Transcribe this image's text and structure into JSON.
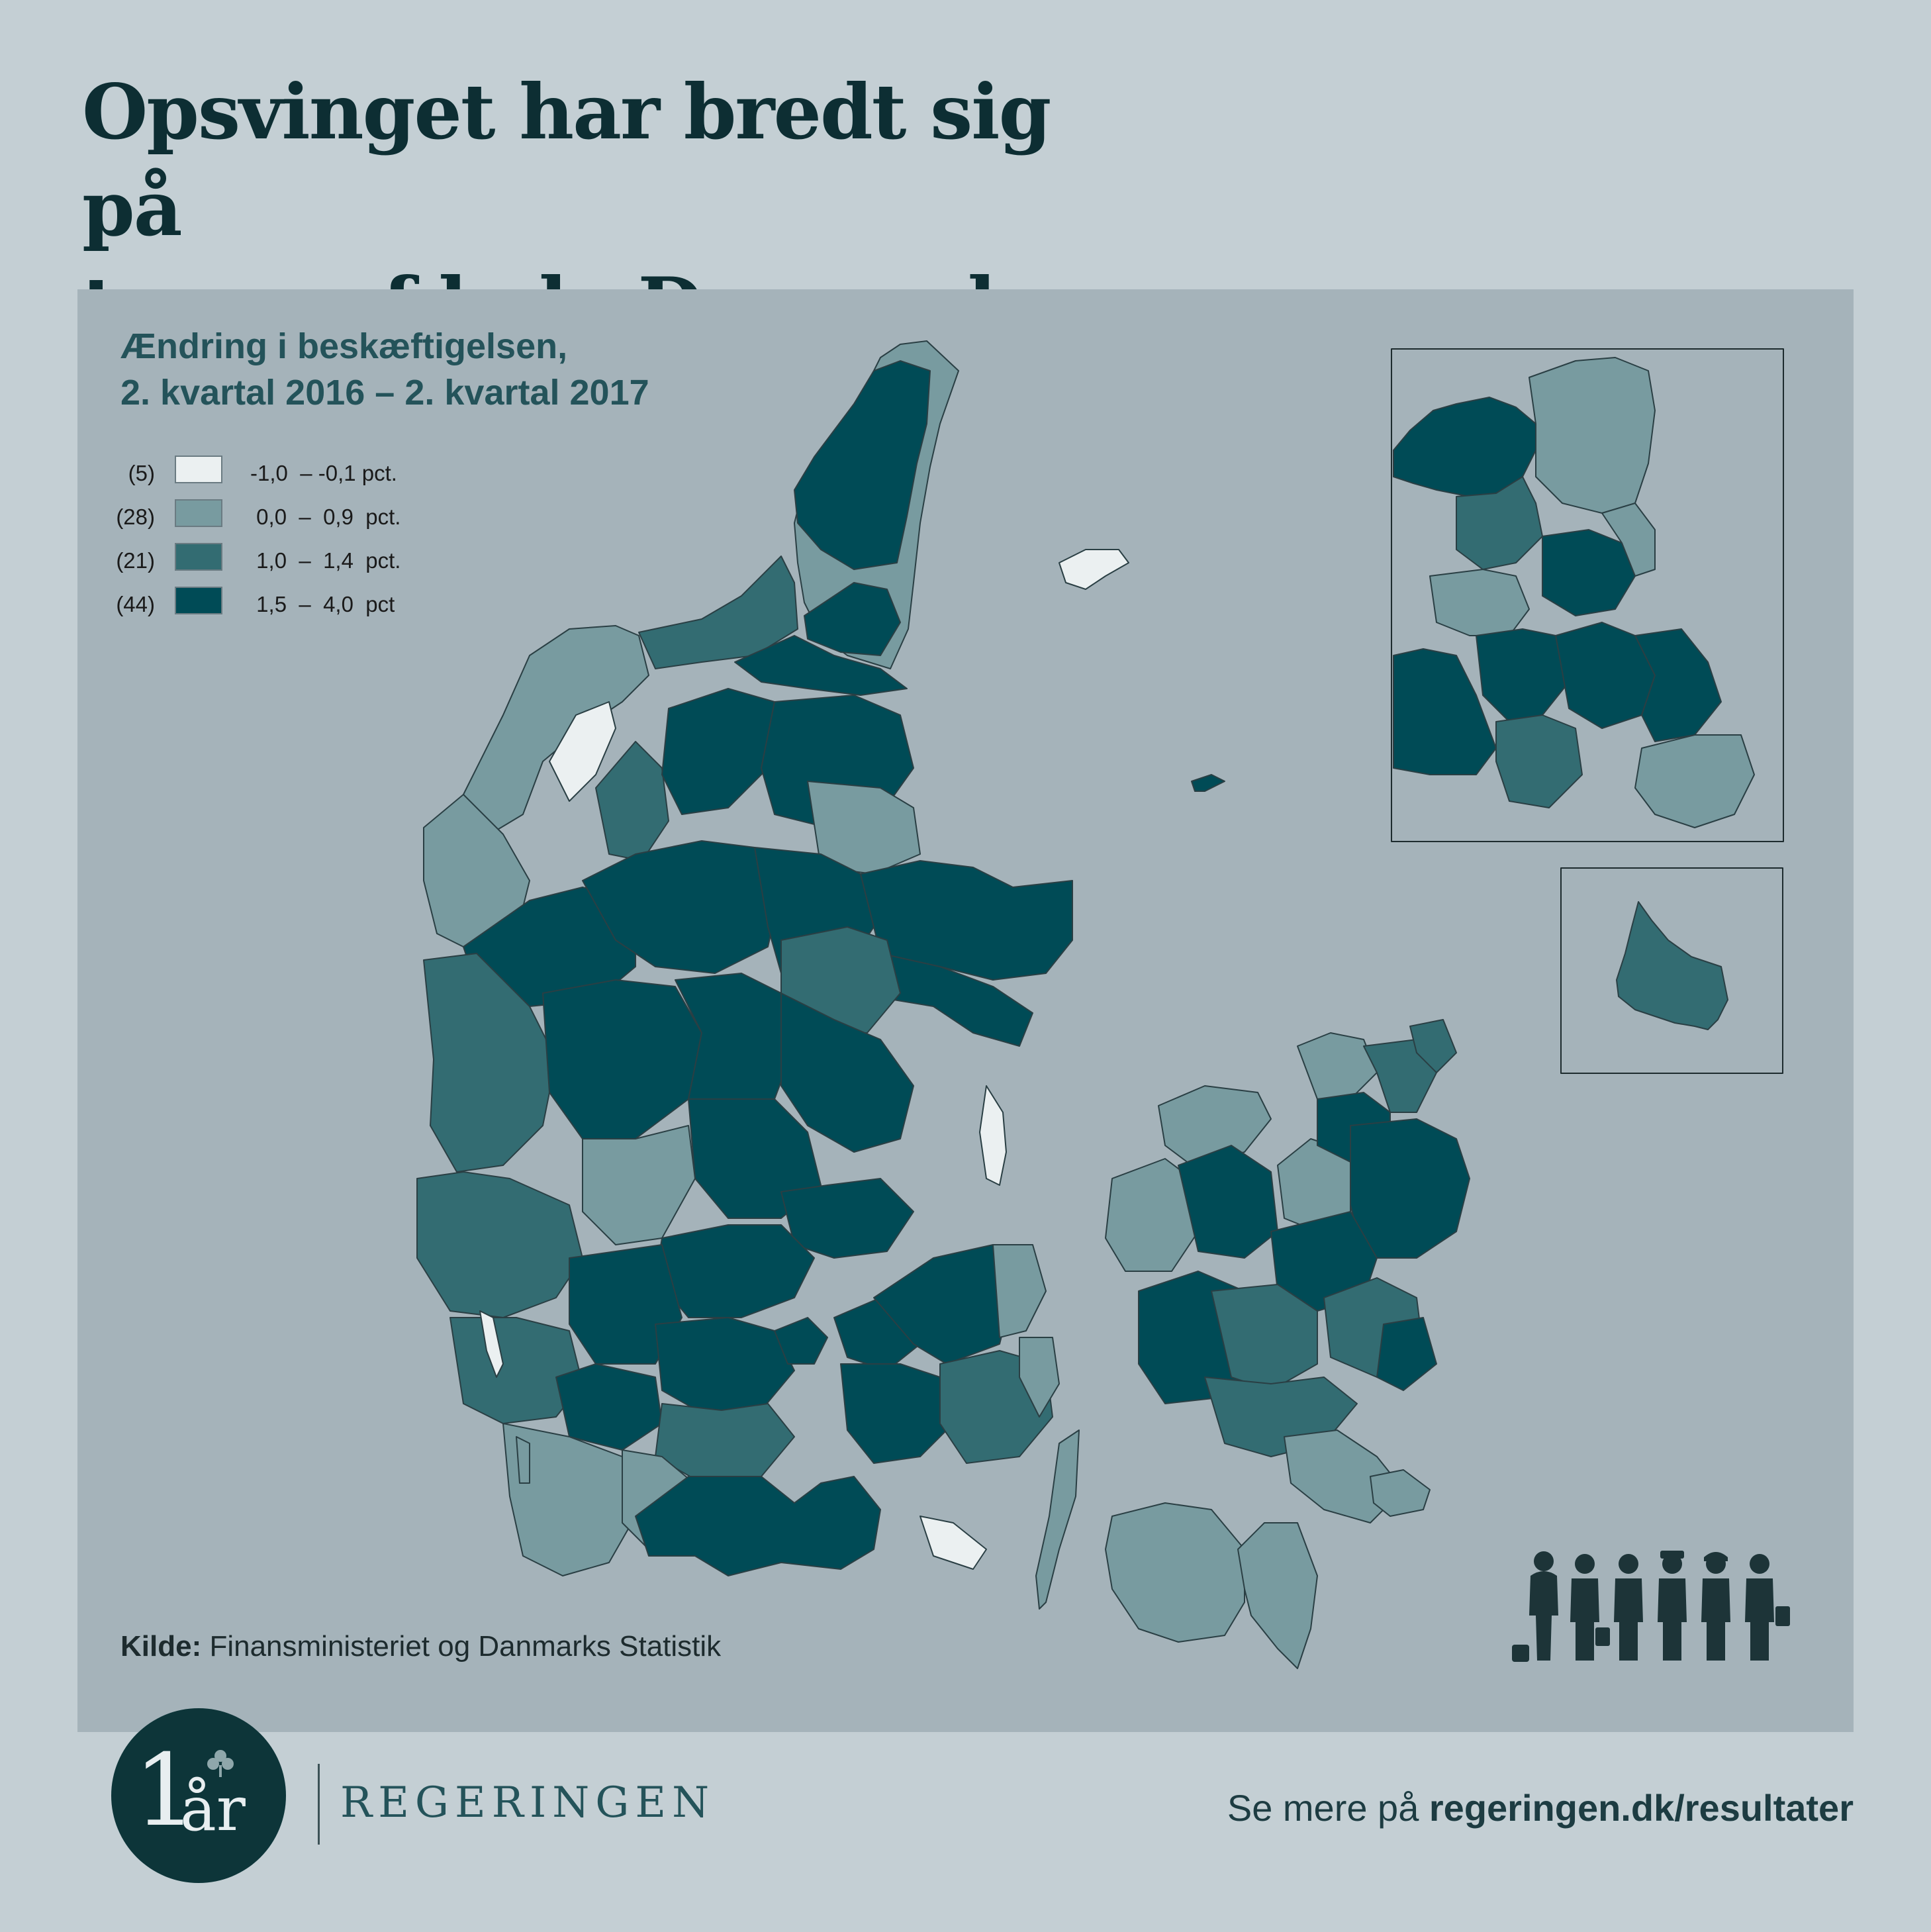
{
  "title": {
    "line1": "Opsvinget har bredt sig på",
    "line2": "tværs af hele Danmark"
  },
  "subtitle": {
    "line1": "Ændring i beskæftigelsen,",
    "line2": "2. kvartal 2016 – 2. kvartal 2017"
  },
  "legend": [
    {
      "count": "(5)",
      "range": "-1,0  – -0,1 pct.",
      "color": "#ebf0f1"
    },
    {
      "count": "(28)",
      "range": " 0,0  –  0,9  pct.",
      "color": "#789ba0"
    },
    {
      "count": "(21)",
      "range": " 1,0  –  1,4  pct.",
      "color": "#336c72"
    },
    {
      "count": "(44)",
      "range": " 1,5  –  4,0  pct",
      "color": "#004b56"
    }
  ],
  "source": {
    "label": "Kilde:",
    "text": " Finansministeriet og Danmarks Statistik"
  },
  "logo": {
    "number": "1",
    "word": "år"
  },
  "org": "REGERINGEN",
  "link": {
    "prefix": "Se mere på ",
    "url": "regeringen.dk/resultater"
  },
  "colors": {
    "background": "#c4cfd4",
    "panel": "#a5b3ba",
    "title": "#0d2e33",
    "class1": "#ebf0f1",
    "class2": "#789ba0",
    "class3": "#336c72",
    "class4": "#004b56"
  }
}
